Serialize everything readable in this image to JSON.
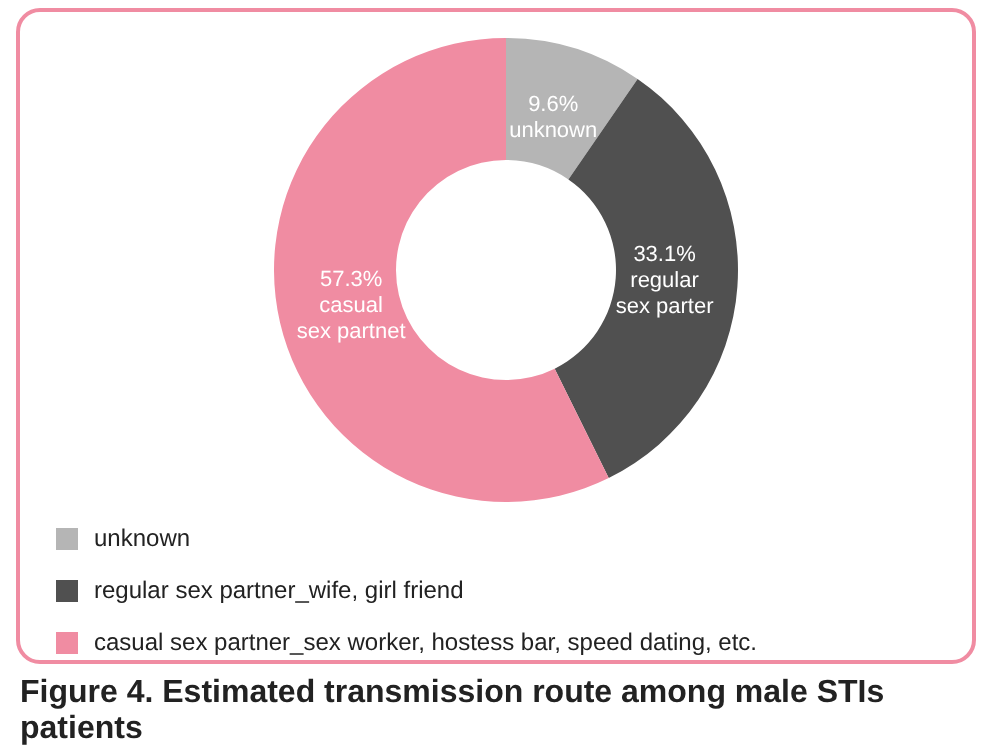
{
  "chart_data": {
    "type": "donut",
    "title": "Figure 4. Estimated transmission route among male STIs patients",
    "categories": [
      "unknown",
      "regular sex partner_wife, girl friend",
      "casual sex partner_sex worker, hostess bar, speed dating, etc."
    ],
    "values": [
      9.6,
      33.1,
      57.3
    ],
    "colors": [
      "#b5b5b5",
      "#505050",
      "#f08ca2"
    ],
    "value_labels": [
      "9.6%\nunknown",
      "33.1%\nregular\nsex parter",
      "57.3%\ncasual\nsex partnet"
    ],
    "legend": "bottom"
  }
}
